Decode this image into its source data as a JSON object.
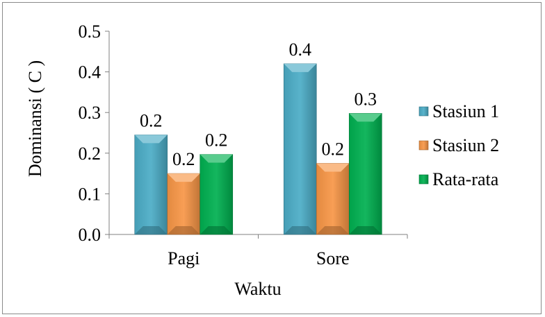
{
  "chart_data": {
    "type": "bar",
    "title": "",
    "xlabel": "Waktu",
    "ylabel": "Dominansi ( C )",
    "categories": [
      "Pagi",
      "Sore"
    ],
    "ylim": [
      0,
      0.5
    ],
    "yticks": [
      "0.0",
      "0.1",
      "0.2",
      "0.3",
      "0.4",
      "0.5"
    ],
    "grid": false,
    "legend_position": "right",
    "series": [
      {
        "name": "Stasiun 1",
        "values": [
          0.245,
          0.42
        ],
        "labels": [
          "0.2",
          "0.4"
        ],
        "color": "#4bacc6"
      },
      {
        "name": "Stasiun 2",
        "values": [
          0.15,
          0.175
        ],
        "labels": [
          "0.2",
          "0.2"
        ],
        "color": "#f79646"
      },
      {
        "name": "Rata-rata",
        "values": [
          0.197,
          0.298
        ],
        "labels": [
          "0.2",
          "0.3"
        ],
        "color": "#00b050"
      }
    ]
  }
}
